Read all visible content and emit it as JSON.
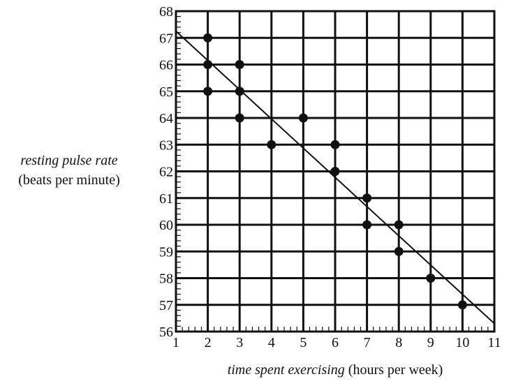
{
  "chart_data": {
    "type": "scatter",
    "xlabel_italic": "time spent exercising",
    "xlabel_units": "(hours per week)",
    "ylabel_italic": "resting pulse rate",
    "ylabel_units": "(beats per minute)",
    "xlim": [
      1,
      11
    ],
    "ylim": [
      56,
      68
    ],
    "xticks": [
      1,
      2,
      3,
      4,
      5,
      6,
      7,
      8,
      9,
      10,
      11
    ],
    "yticks": [
      56,
      57,
      58,
      59,
      60,
      61,
      62,
      63,
      64,
      65,
      66,
      67,
      68
    ],
    "grid": true,
    "points": [
      {
        "x": 2,
        "y": 67
      },
      {
        "x": 2,
        "y": 66
      },
      {
        "x": 2,
        "y": 65
      },
      {
        "x": 3,
        "y": 66
      },
      {
        "x": 3,
        "y": 65
      },
      {
        "x": 3,
        "y": 64
      },
      {
        "x": 4,
        "y": 63
      },
      {
        "x": 5,
        "y": 64
      },
      {
        "x": 6,
        "y": 63
      },
      {
        "x": 6,
        "y": 62
      },
      {
        "x": 7,
        "y": 61
      },
      {
        "x": 7,
        "y": 60
      },
      {
        "x": 8,
        "y": 60
      },
      {
        "x": 8,
        "y": 59
      },
      {
        "x": 9,
        "y": 58
      },
      {
        "x": 10,
        "y": 57
      }
    ],
    "trend_line": {
      "x1": 1,
      "y1": 67.25,
      "x2": 11,
      "y2": 56.3
    }
  }
}
